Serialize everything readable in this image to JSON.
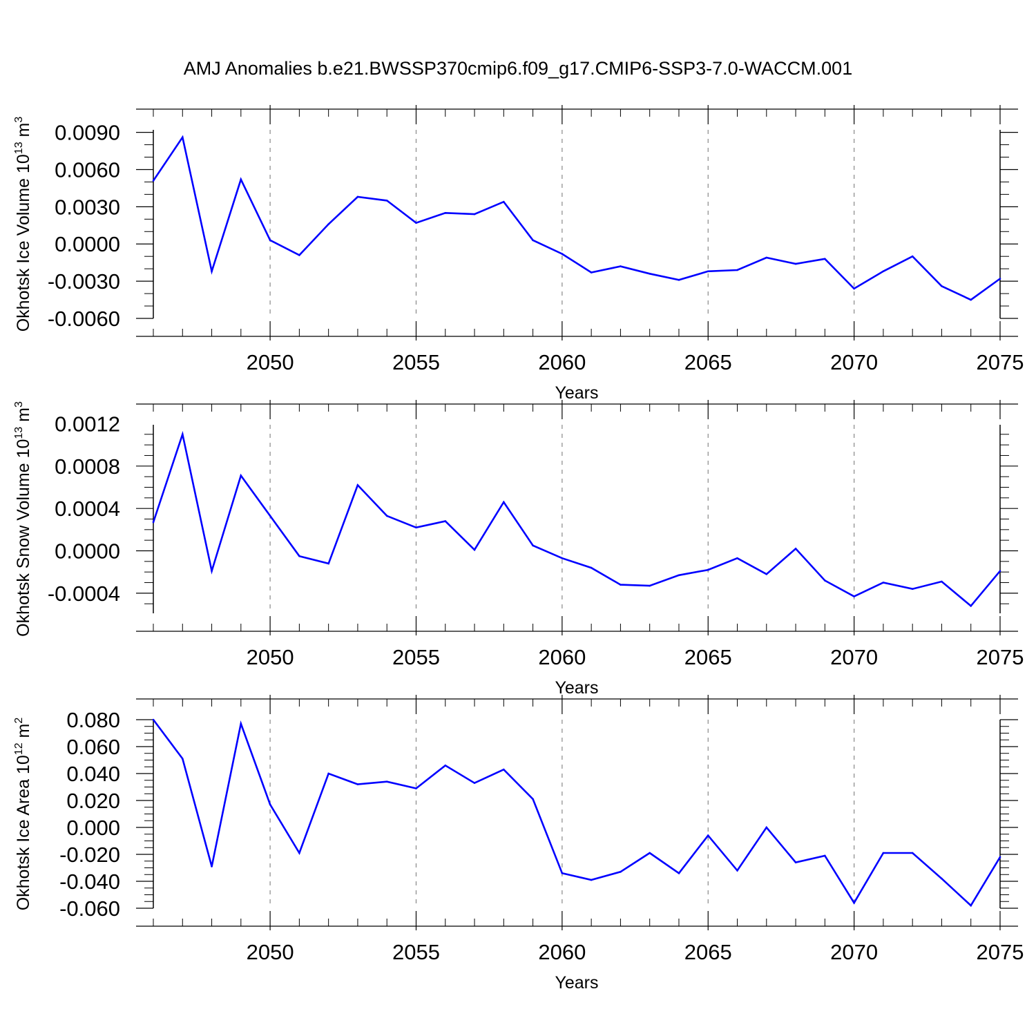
{
  "title": "AMJ Anomalies b.e21.BWSSP370cmip6.f09_g17.CMIP6-SSP3-7.0-WACCM.001",
  "chart_data": [
    {
      "type": "line",
      "ylabel": "Okhotsk Ice Volume 10",
      "ylabel_exp": "13",
      "ylabel_unit": " m",
      "ylabel_unit_exp": "3",
      "xlabel": "Years",
      "xlim": [
        2046,
        2075
      ],
      "ylim": [
        -0.006,
        0.0092
      ],
      "xticks": [
        2050,
        2055,
        2060,
        2065,
        2070,
        2075
      ],
      "yticks": [
        -0.006,
        -0.003,
        0.0,
        0.003,
        0.006,
        0.009
      ],
      "ytick_labels": [
        "-0.0060",
        "-0.0030",
        "0.0000",
        "0.0030",
        "0.0060",
        "0.0090"
      ],
      "ymajor_step": 0.003,
      "yminor_step": 0.001,
      "grid": "vertical dashed at x ticks",
      "line_color": "#0000ff",
      "x": [
        2046,
        2047,
        2048,
        2049,
        2050,
        2051,
        2052,
        2053,
        2054,
        2055,
        2056,
        2057,
        2058,
        2059,
        2060,
        2061,
        2062,
        2063,
        2064,
        2065,
        2066,
        2067,
        2068,
        2069,
        2070,
        2071,
        2072,
        2073,
        2074,
        2075
      ],
      "y": [
        0.0051,
        0.0086,
        -0.0022,
        0.0052,
        0.0003,
        -0.0009,
        0.0016,
        0.0038,
        0.0035,
        0.0017,
        0.0025,
        0.0024,
        0.0034,
        0.0003,
        -0.0008,
        -0.0023,
        -0.0018,
        -0.0024,
        -0.0029,
        -0.0022,
        -0.0021,
        -0.0011,
        -0.0016,
        -0.0012,
        -0.0036,
        -0.0022,
        -0.001,
        -0.0034,
        -0.0045,
        -0.0028
      ]
    },
    {
      "type": "line",
      "ylabel": "Okhotsk Snow Volume 10",
      "ylabel_exp": "13",
      "ylabel_unit": " m",
      "ylabel_unit_exp": "3",
      "xlabel": "Years",
      "xlim": [
        2046,
        2075
      ],
      "ylim": [
        -0.00059,
        0.00119
      ],
      "xticks": [
        2050,
        2055,
        2060,
        2065,
        2070,
        2075
      ],
      "yticks": [
        -0.0004,
        0.0,
        0.0004,
        0.0008,
        0.0012
      ],
      "ytick_labels": [
        "-0.0004",
        "0.0000",
        "0.0004",
        "0.0008",
        "0.0012"
      ],
      "ymajor_step": 0.0004,
      "yminor_step": 0.0001,
      "grid": "vertical dashed at x ticks",
      "line_color": "#0000ff",
      "x": [
        2046,
        2047,
        2048,
        2049,
        2050,
        2051,
        2052,
        2053,
        2054,
        2055,
        2056,
        2057,
        2058,
        2059,
        2060,
        2061,
        2062,
        2063,
        2064,
        2065,
        2066,
        2067,
        2068,
        2069,
        2070,
        2071,
        2072,
        2073,
        2074,
        2075
      ],
      "y": [
        0.00027,
        0.0011,
        -0.00019,
        0.00071,
        0.00033,
        -5e-05,
        -0.00012,
        0.00062,
        0.00033,
        0.00022,
        0.00028,
        1e-05,
        0.00046,
        5e-05,
        -7e-05,
        -0.00016,
        -0.00032,
        -0.00033,
        -0.00023,
        -0.00018,
        -7e-05,
        -0.00022,
        2e-05,
        -0.00028,
        -0.00043,
        -0.0003,
        -0.00036,
        -0.00029,
        -0.00052,
        -0.00019
      ]
    },
    {
      "type": "line",
      "ylabel": "Okhotsk Ice Area 10",
      "ylabel_exp": "12",
      "ylabel_unit": " m",
      "ylabel_unit_exp": "2",
      "xlabel": "Years",
      "xlim": [
        2046,
        2075
      ],
      "ylim": [
        -0.06,
        0.08
      ],
      "xticks": [
        2050,
        2055,
        2060,
        2065,
        2070,
        2075
      ],
      "yticks": [
        -0.06,
        -0.04,
        -0.02,
        0.0,
        0.02,
        0.04,
        0.06,
        0.08
      ],
      "ytick_labels": [
        "-0.060",
        "-0.040",
        "-0.020",
        "0.000",
        "0.020",
        "0.040",
        "0.060",
        "0.080"
      ],
      "ymajor_step": 0.02,
      "yminor_step": 0.005,
      "grid": "vertical dashed at x ticks",
      "line_color": "#0000ff",
      "x": [
        2046,
        2047,
        2048,
        2049,
        2050,
        2051,
        2052,
        2053,
        2054,
        2055,
        2056,
        2057,
        2058,
        2059,
        2060,
        2061,
        2062,
        2063,
        2064,
        2065,
        2066,
        2067,
        2068,
        2069,
        2070,
        2071,
        2072,
        2073,
        2074,
        2075
      ],
      "y": [
        0.08,
        0.051,
        -0.029,
        0.077,
        0.017,
        -0.019,
        0.04,
        0.032,
        0.034,
        0.029,
        0.046,
        0.033,
        0.043,
        0.021,
        -0.034,
        -0.039,
        -0.033,
        -0.019,
        -0.034,
        -0.006,
        -0.032,
        0.0,
        -0.026,
        -0.021,
        -0.056,
        -0.019,
        -0.019,
        -0.038,
        -0.058,
        -0.022
      ]
    }
  ]
}
